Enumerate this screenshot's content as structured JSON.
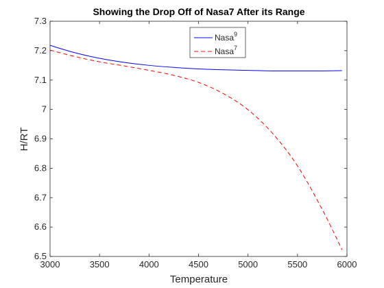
{
  "chart_data": {
    "type": "line",
    "title": "Showing the Drop Off of Nasa7 After its Range",
    "xlabel": "Temperature",
    "ylabel": "H/RT",
    "xlim": [
      3000,
      6000
    ],
    "ylim": [
      6.5,
      7.3
    ],
    "xticks": [
      3000,
      3500,
      4000,
      4500,
      5000,
      5500,
      6000
    ],
    "yticks": [
      6.5,
      6.6,
      6.7,
      6.8,
      6.9,
      7.0,
      7.1,
      7.2,
      7.3
    ],
    "xtick_labels": [
      "3000",
      "3500",
      "4000",
      "4500",
      "5000",
      "5500",
      "6000"
    ],
    "ytick_labels": [
      "6.5",
      "6.6",
      "6.7",
      "6.8",
      "6.9",
      "7",
      "7.1",
      "7.2",
      "7.3"
    ],
    "grid": false,
    "legend_position": "top-center",
    "series": [
      {
        "name": "Nasa",
        "name_sup": "9",
        "color": "#0000ff",
        "style": "solid",
        "x": [
          3000,
          3250,
          3500,
          3750,
          4000,
          4250,
          4500,
          4750,
          5000,
          5250,
          5500,
          5750,
          5950
        ],
        "y": [
          7.218,
          7.193,
          7.174,
          7.16,
          7.15,
          7.143,
          7.138,
          7.135,
          7.133,
          7.131,
          7.131,
          7.131,
          7.132
        ]
      },
      {
        "name": "Nasa",
        "name_sup": "7",
        "color": "#ff0000",
        "style": "dashed",
        "x": [
          3000,
          3250,
          3500,
          3750,
          4000,
          4250,
          4500,
          4750,
          5000,
          5250,
          5500,
          5750,
          5950
        ],
        "y": [
          7.202,
          7.18,
          7.162,
          7.148,
          7.133,
          7.116,
          7.092,
          7.054,
          6.999,
          6.918,
          6.808,
          6.66,
          6.523
        ]
      }
    ]
  }
}
